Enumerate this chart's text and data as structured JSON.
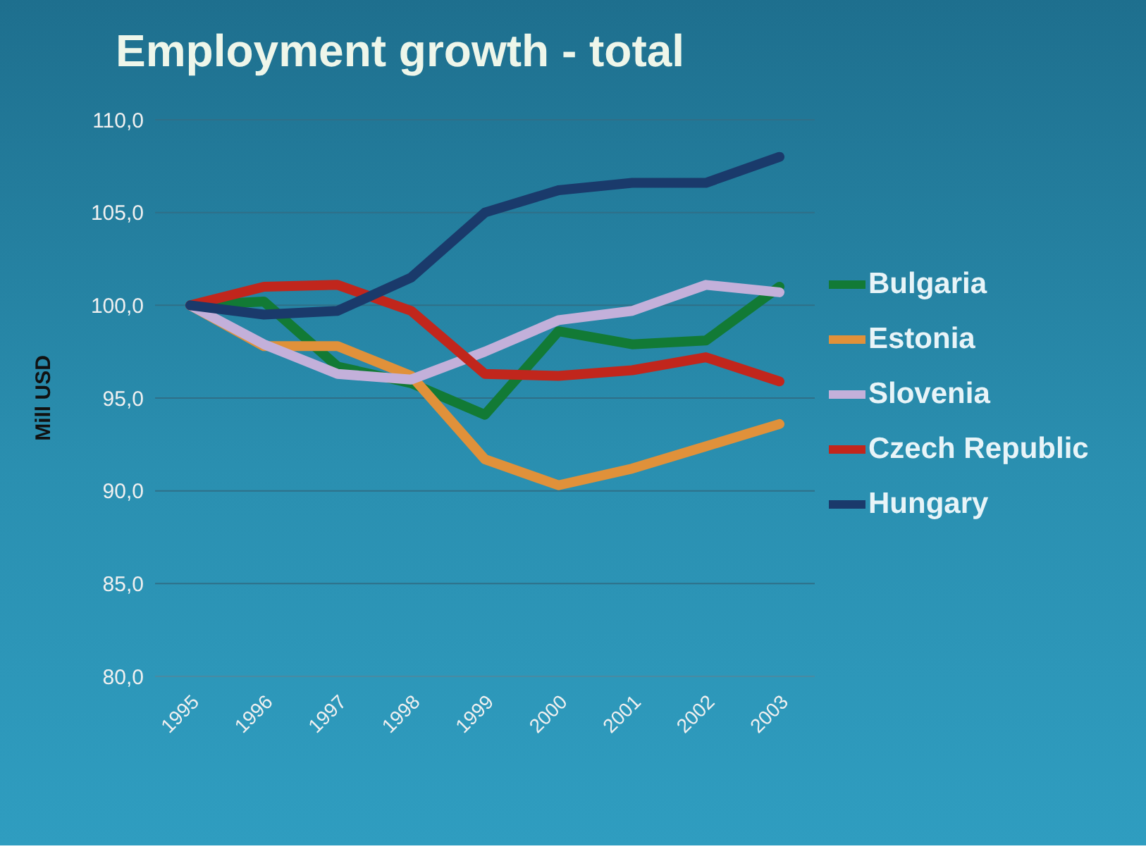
{
  "chart_data": {
    "type": "line",
    "title": "Employment growth - total",
    "ylabel": "Mill USD",
    "categories": [
      "1995",
      "1996",
      "1997",
      "1998",
      "1999",
      "2000",
      "2001",
      "2002",
      "2003"
    ],
    "series": [
      {
        "name": "Bulgaria",
        "color": "#127a35",
        "values": [
          100,
          100.2,
          96.7,
          95.8,
          94.1,
          98.6,
          97.9,
          98.1,
          101
        ]
      },
      {
        "name": "Estonia",
        "color": "#e0913a",
        "values": [
          100,
          97.8,
          97.8,
          96.2,
          91.7,
          90.3,
          91.2,
          92.4,
          93.6
        ]
      },
      {
        "name": "Slovenia",
        "color": "#c3b0da",
        "values": [
          100,
          97.9,
          96.3,
          96,
          97.5,
          99.2,
          99.7,
          101.1,
          100.7
        ]
      },
      {
        "name": "Czech Republic",
        "color": "#c1261c",
        "values": [
          100,
          101,
          101.1,
          99.7,
          96.3,
          96.2,
          96.5,
          97.2,
          95.9
        ]
      },
      {
        "name": "Hungary",
        "color": "#1a3a6b",
        "values": [
          100,
          99.5,
          99.7,
          101.5,
          105,
          106.2,
          106.6,
          106.6,
          108
        ]
      }
    ],
    "ylim": [
      80,
      110
    ],
    "yticks": [
      {
        "value": 80,
        "label": "80,0"
      },
      {
        "value": 85,
        "label": "85,0"
      },
      {
        "value": 90,
        "label": "90,0"
      },
      {
        "value": 95,
        "label": "95,0"
      },
      {
        "value": 100,
        "label": "100,0"
      },
      {
        "value": 105,
        "label": "105,0"
      },
      {
        "value": 110,
        "label": "110,0"
      }
    ],
    "grid": "y",
    "legend": "right",
    "marker": "none",
    "line_style": "solid"
  }
}
